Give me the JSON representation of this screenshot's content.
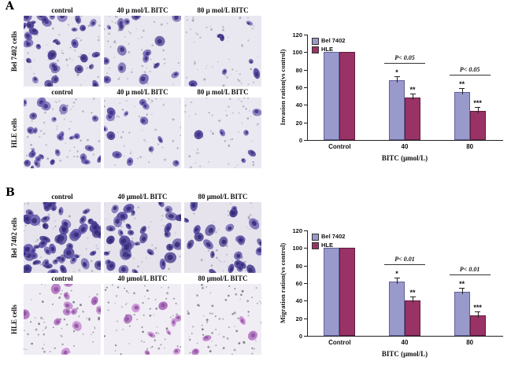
{
  "panels": [
    {
      "label": "A",
      "rows": [
        {
          "row_label": "Bel 7402 cells",
          "columns": [
            "control",
            "40 μ mol/L BITC",
            "80 μ mol/L BITC"
          ]
        },
        {
          "row_label": "HLE cells",
          "columns": [
            "control",
            "40 μ mol/L BITC",
            "80 μ mol/L BITC"
          ]
        }
      ]
    },
    {
      "label": "B",
      "rows": [
        {
          "row_label": "Bel 7402 cells",
          "columns": [
            "control",
            "40 μmol/L BITC",
            "80 μmol/L BITC"
          ]
        },
        {
          "row_label": "HLE cells",
          "columns": [
            "control",
            "40 μmol/L BITC",
            "80 μmol/L BITC"
          ]
        }
      ]
    }
  ],
  "chart_data": [
    {
      "type": "bar",
      "title": "",
      "ylabel": "Invasion ration(vs control)",
      "xlabel": "BITC (μmol/L)",
      "categories": [
        "Control",
        "40",
        "80"
      ],
      "ylim": [
        0,
        120
      ],
      "yticks": [
        0,
        20,
        40,
        60,
        80,
        100,
        120
      ],
      "grid": false,
      "legend_position": "top-left",
      "error_bars": true,
      "series": [
        {
          "name": "Bel 7402",
          "color": "#9999cc",
          "border": "#60609a",
          "values": [
            100,
            68,
            55
          ],
          "significance": [
            "",
            "*",
            "**"
          ]
        },
        {
          "name": "HLE",
          "color": "#993366",
          "border": "#5e1c3d",
          "values": [
            100,
            48,
            33
          ],
          "significance": [
            "",
            "**",
            "***"
          ]
        }
      ],
      "annotations": [
        {
          "group_index": 1,
          "text": "P< 0.05"
        },
        {
          "group_index": 2,
          "text": "P< 0.05"
        }
      ]
    },
    {
      "type": "bar",
      "title": "",
      "ylabel": "Migration ration(vs control)",
      "xlabel": "BITC (μmol/L)",
      "categories": [
        "Control",
        "40",
        "80"
      ],
      "ylim": [
        0,
        120
      ],
      "yticks": [
        0,
        20,
        40,
        60,
        80,
        100,
        120
      ],
      "grid": false,
      "legend_position": "top-left",
      "error_bars": true,
      "series": [
        {
          "name": "Bel 7402",
          "color": "#9999cc",
          "border": "#60609a",
          "values": [
            100,
            62,
            50
          ],
          "significance": [
            "",
            "*",
            "**"
          ]
        },
        {
          "name": "HLE",
          "color": "#993366",
          "border": "#5e1c3d",
          "values": [
            100,
            40,
            23
          ],
          "significance": [
            "",
            "**",
            "***"
          ]
        }
      ],
      "annotations": [
        {
          "group_index": 1,
          "text": "P< 0.01"
        },
        {
          "group_index": 2,
          "text": "P< 0.01"
        }
      ]
    }
  ]
}
